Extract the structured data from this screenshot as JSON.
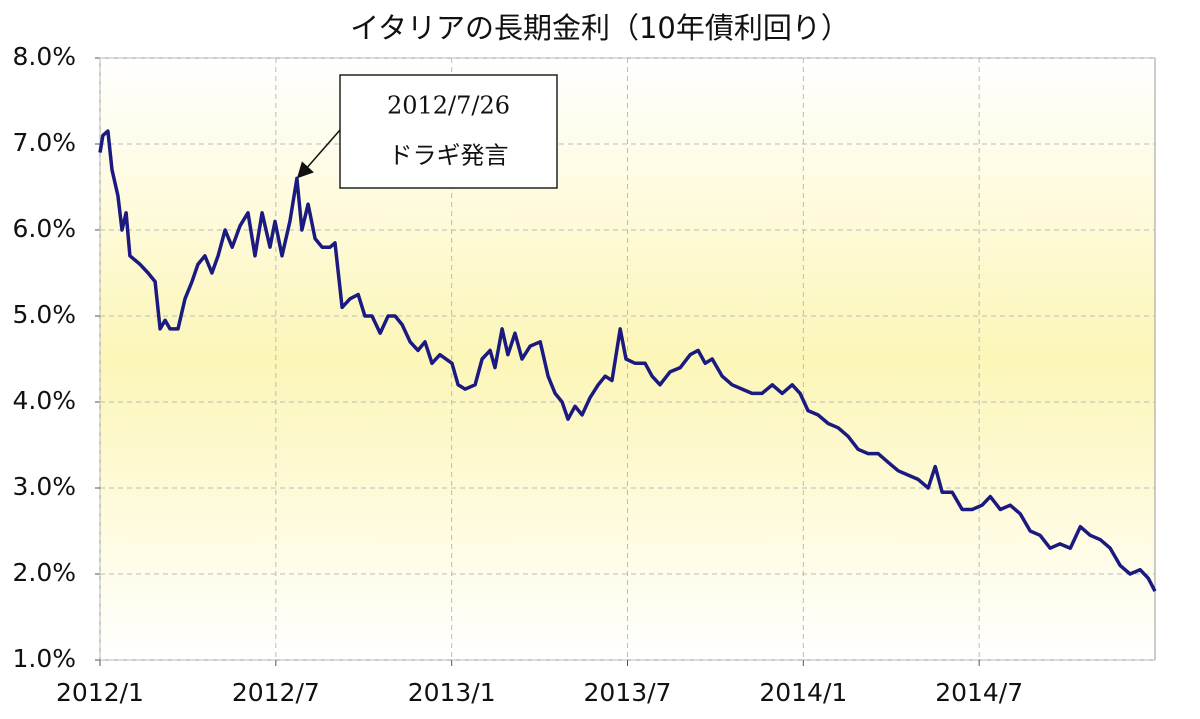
{
  "chart_data": {
    "type": "line",
    "title": "イタリアの長期金利（10年債利回り）",
    "x": [
      0,
      0.1,
      0.27,
      0.41,
      0.61,
      0.75,
      0.89,
      1.02,
      1.37,
      1.64,
      1.88,
      2.05,
      2.22,
      2.39,
      2.66,
      2.9,
      3.14,
      3.34,
      3.58,
      3.82,
      4.03,
      4.27,
      4.51,
      4.78,
      5.05,
      5.29,
      5.53,
      5.8,
      5.97,
      6.21,
      6.48,
      6.72,
      6.89,
      7.1,
      7.34,
      7.58,
      7.85,
      8.02,
      8.26,
      8.53,
      8.81,
      9.04,
      9.28,
      9.56,
      9.83,
      10.07,
      10.31,
      10.58,
      10.85,
      11.09,
      11.33,
      11.6,
      12.01,
      12.22,
      12.46,
      12.8,
      13.04,
      13.31,
      13.48,
      13.72,
      13.92,
      14.16,
      14.4,
      14.68,
      15.02,
      15.29,
      15.53,
      15.77,
      15.97,
      16.21,
      16.45,
      16.72,
      17.0,
      17.24,
      17.47,
      17.75,
      17.95,
      18.26,
      18.6,
      18.84,
      19.11,
      19.45,
      19.8,
      20.14,
      20.41,
      20.65,
      20.89,
      21.23,
      21.57,
      21.91,
      22.25,
      22.59,
      22.94,
      23.28,
      23.62,
      23.89,
      24.16,
      24.5,
      24.85,
      25.19,
      25.53,
      25.87,
      26.21,
      26.55,
      26.89,
      27.24,
      27.58,
      27.92,
      28.26,
      28.5,
      28.74,
      29.08,
      29.42,
      29.76,
      30.1,
      30.38,
      30.72,
      31.06,
      31.4,
      31.74,
      32.08,
      32.42,
      32.76,
      33.11,
      33.45,
      33.79,
      34.13,
      34.47,
      34.81,
      35.15,
      35.49,
      35.77,
      36.0
    ],
    "series": [
      {
        "color": "#1a1a80",
        "values": [
          6.9,
          7.1,
          7.15,
          6.7,
          6.4,
          6.0,
          6.2,
          5.7,
          5.6,
          5.5,
          5.4,
          4.85,
          4.95,
          4.85,
          4.85,
          5.2,
          5.4,
          5.6,
          5.7,
          5.5,
          5.7,
          6.0,
          5.8,
          6.05,
          6.2,
          5.7,
          6.2,
          5.8,
          6.1,
          5.7,
          6.1,
          6.6,
          6.0,
          6.3,
          5.9,
          5.8,
          5.8,
          5.85,
          5.1,
          5.2,
          5.25,
          5.0,
          5.0,
          4.8,
          5.0,
          5.0,
          4.9,
          4.7,
          4.6,
          4.7,
          4.45,
          4.55,
          4.45,
          4.2,
          4.15,
          4.2,
          4.5,
          4.6,
          4.4,
          4.85,
          4.55,
          4.8,
          4.5,
          4.65,
          4.7,
          4.3,
          4.1,
          4.0,
          3.8,
          3.95,
          3.85,
          4.05,
          4.2,
          4.3,
          4.25,
          4.85,
          4.5,
          4.45,
          4.45,
          4.3,
          4.2,
          4.35,
          4.4,
          4.55,
          4.6,
          4.45,
          4.5,
          4.3,
          4.2,
          4.15,
          4.1,
          4.1,
          4.2,
          4.1,
          4.2,
          4.1,
          3.9,
          3.85,
          3.75,
          3.7,
          3.6,
          3.45,
          3.4,
          3.4,
          3.3,
          3.2,
          3.15,
          3.1,
          3.0,
          3.25,
          2.95,
          2.95,
          2.75,
          2.75,
          2.8,
          2.9,
          2.75,
          2.8,
          2.7,
          2.5,
          2.45,
          2.3,
          2.35,
          2.3,
          2.55,
          2.45,
          2.4,
          2.3,
          2.1,
          2.0,
          2.05,
          1.95,
          1.8
        ]
      }
    ],
    "xlim": [
      0,
      36
    ],
    "xticks": [
      {
        "value": 0,
        "label": "2012/1"
      },
      {
        "value": 6,
        "label": "2012/7"
      },
      {
        "value": 12,
        "label": "2013/1"
      },
      {
        "value": 18,
        "label": "2013/7"
      },
      {
        "value": 24,
        "label": "2014/1"
      },
      {
        "value": 30,
        "label": "2014/7"
      }
    ],
    "ylim": [
      1,
      8
    ],
    "yticks": [
      {
        "value": 1,
        "label": "1.0%"
      },
      {
        "value": 2,
        "label": "2.0%"
      },
      {
        "value": 3,
        "label": "3.0%"
      },
      {
        "value": 4,
        "label": "4.0%"
      },
      {
        "value": 5,
        "label": "5.0%"
      },
      {
        "value": 6,
        "label": "6.0%"
      },
      {
        "value": 7,
        "label": "7.0%"
      },
      {
        "value": 8,
        "label": "8.0%"
      }
    ],
    "grid": true,
    "annotation": {
      "lines": [
        "2012/7/26",
        "ドラギ発言"
      ],
      "x": 6.72,
      "y": 6.6
    }
  }
}
